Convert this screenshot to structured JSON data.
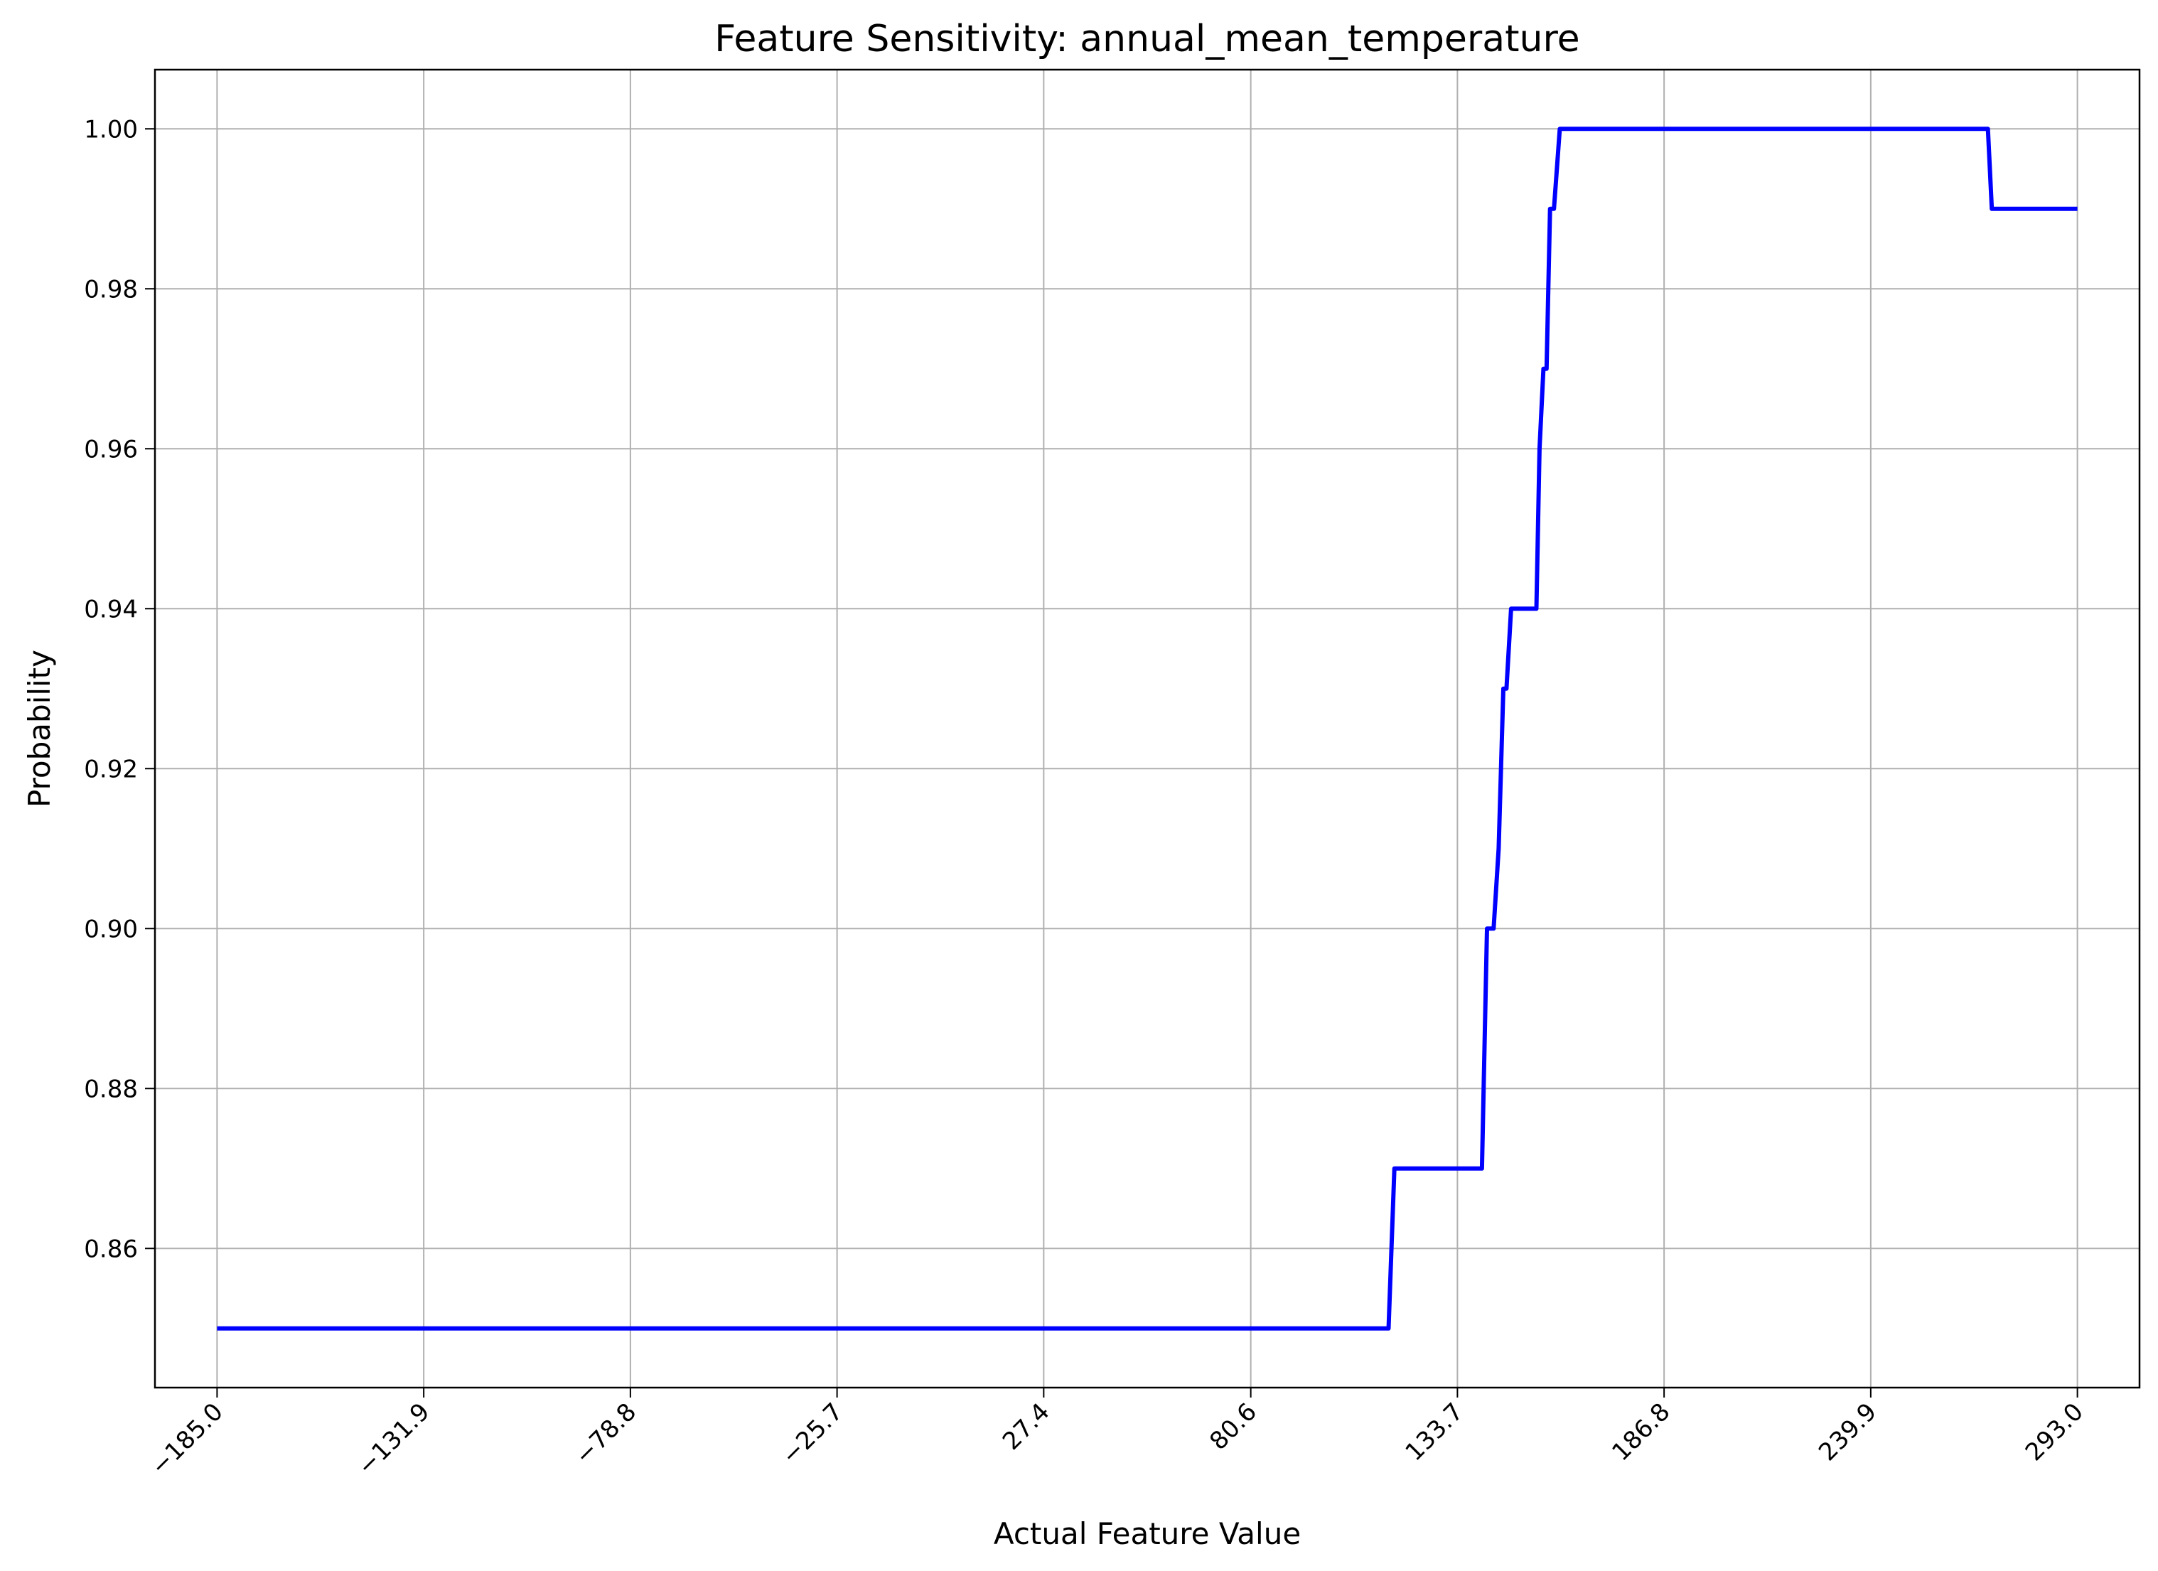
{
  "chart_data": {
    "type": "line",
    "title": "Feature Sensitivity: annual_mean_temperature",
    "xlabel": "Actual Feature Value",
    "ylabel": "Probability",
    "xlim": [
      -200.96,
      308.96
    ],
    "ylim": [
      0.8426,
      1.0074
    ],
    "grid": true,
    "x_ticks": [
      -185.0,
      -131.9,
      -78.8,
      -25.7,
      27.4,
      80.6,
      133.7,
      186.8,
      239.9,
      293.0
    ],
    "x_tick_labels": [
      "−185.0",
      "−131.9",
      "−78.8",
      "−25.7",
      "27.4",
      "80.6",
      "133.7",
      "186.8",
      "239.9",
      "293.0"
    ],
    "y_ticks": [
      0.86,
      0.88,
      0.9,
      0.92,
      0.94,
      0.96,
      0.98,
      1.0
    ],
    "y_tick_labels": [
      "0.86",
      "0.88",
      "0.90",
      "0.92",
      "0.94",
      "0.96",
      "0.98",
      "1.00"
    ],
    "series": [
      {
        "color": "#0000ff",
        "x": [
          -185.0,
          116.0,
          117.5,
          140.0,
          141.3,
          143.0,
          144.3,
          145.5,
          146.3,
          147.5,
          154.0,
          154.8,
          155.8,
          156.6,
          157.5,
          158.5,
          160.0,
          270.0,
          271.0,
          293.0
        ],
        "y": [
          0.85,
          0.85,
          0.87,
          0.87,
          0.9,
          0.9,
          0.91,
          0.93,
          0.93,
          0.94,
          0.94,
          0.96,
          0.97,
          0.97,
          0.99,
          0.99,
          1.0,
          1.0,
          0.99,
          0.99
        ]
      }
    ]
  }
}
